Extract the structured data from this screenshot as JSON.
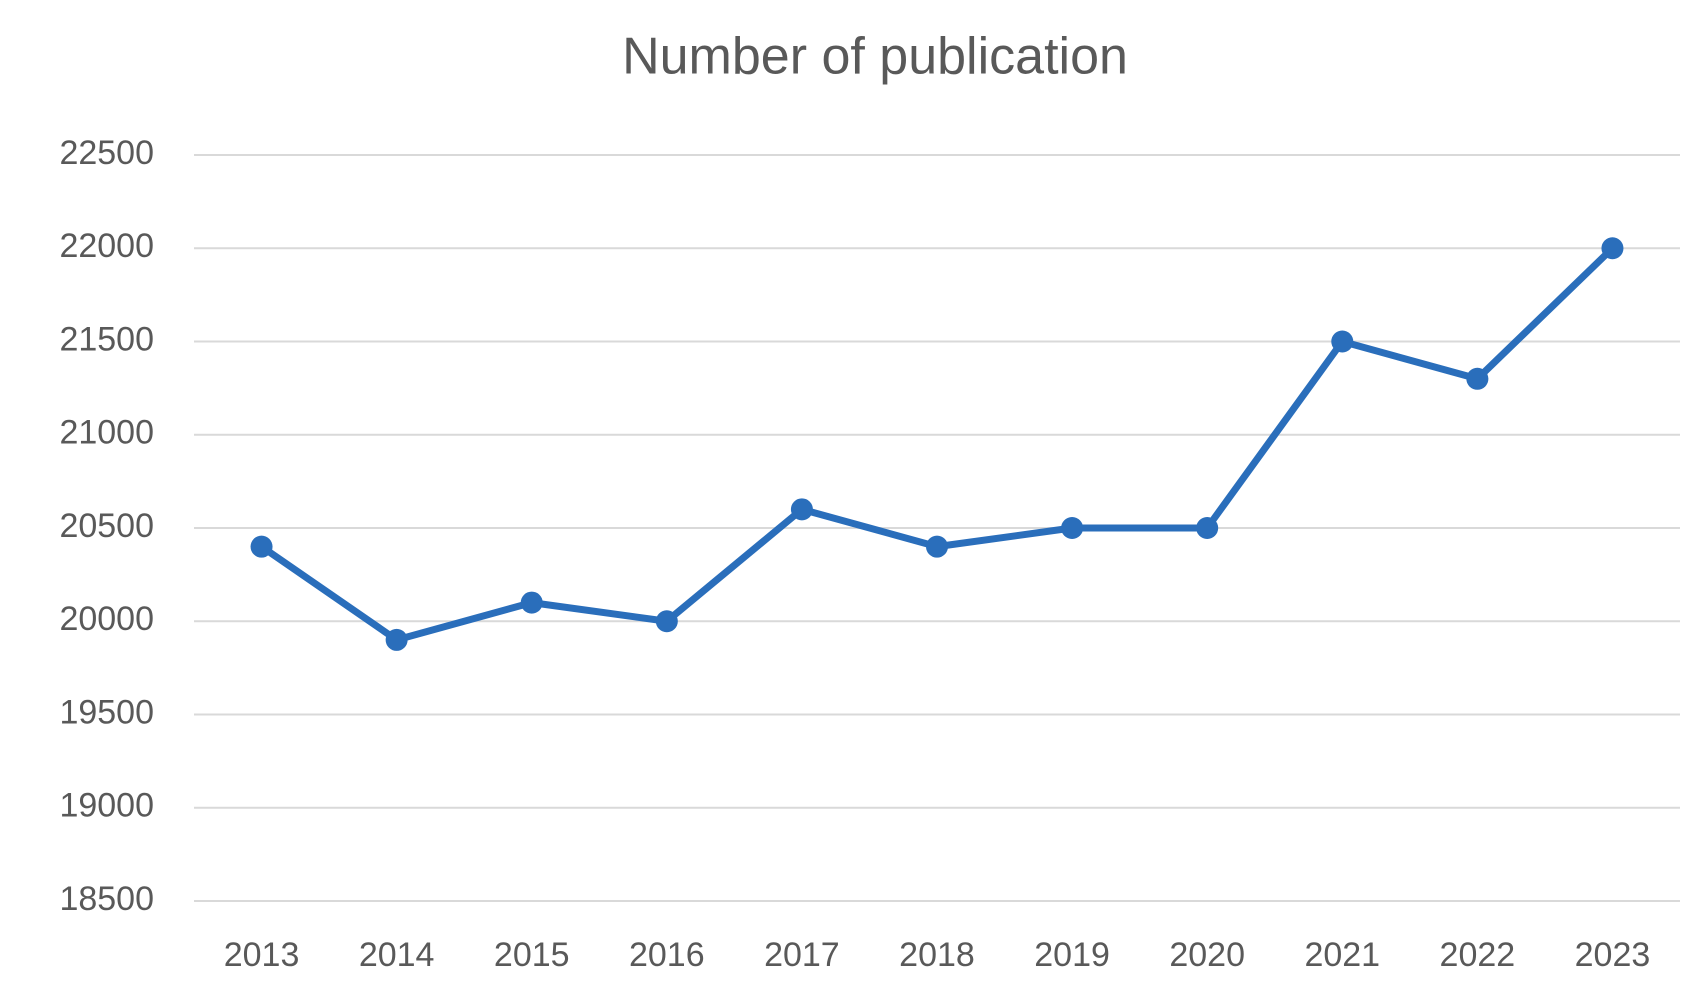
{
  "chart_data": {
    "type": "line",
    "title": "Number of publication",
    "categories": [
      "2013",
      "2014",
      "2015",
      "2016",
      "2017",
      "2018",
      "2019",
      "2020",
      "2021",
      "2022",
      "2023"
    ],
    "values": [
      20400,
      19900,
      20100,
      20000,
      20600,
      20400,
      20500,
      20500,
      21500,
      21300,
      22000
    ],
    "color": "#2a6ebb",
    "ylim": [
      18500,
      22500
    ],
    "yticks": [
      18500,
      19000,
      19500,
      20000,
      20500,
      21000,
      21500,
      22000,
      22500
    ],
    "grid": true
  }
}
